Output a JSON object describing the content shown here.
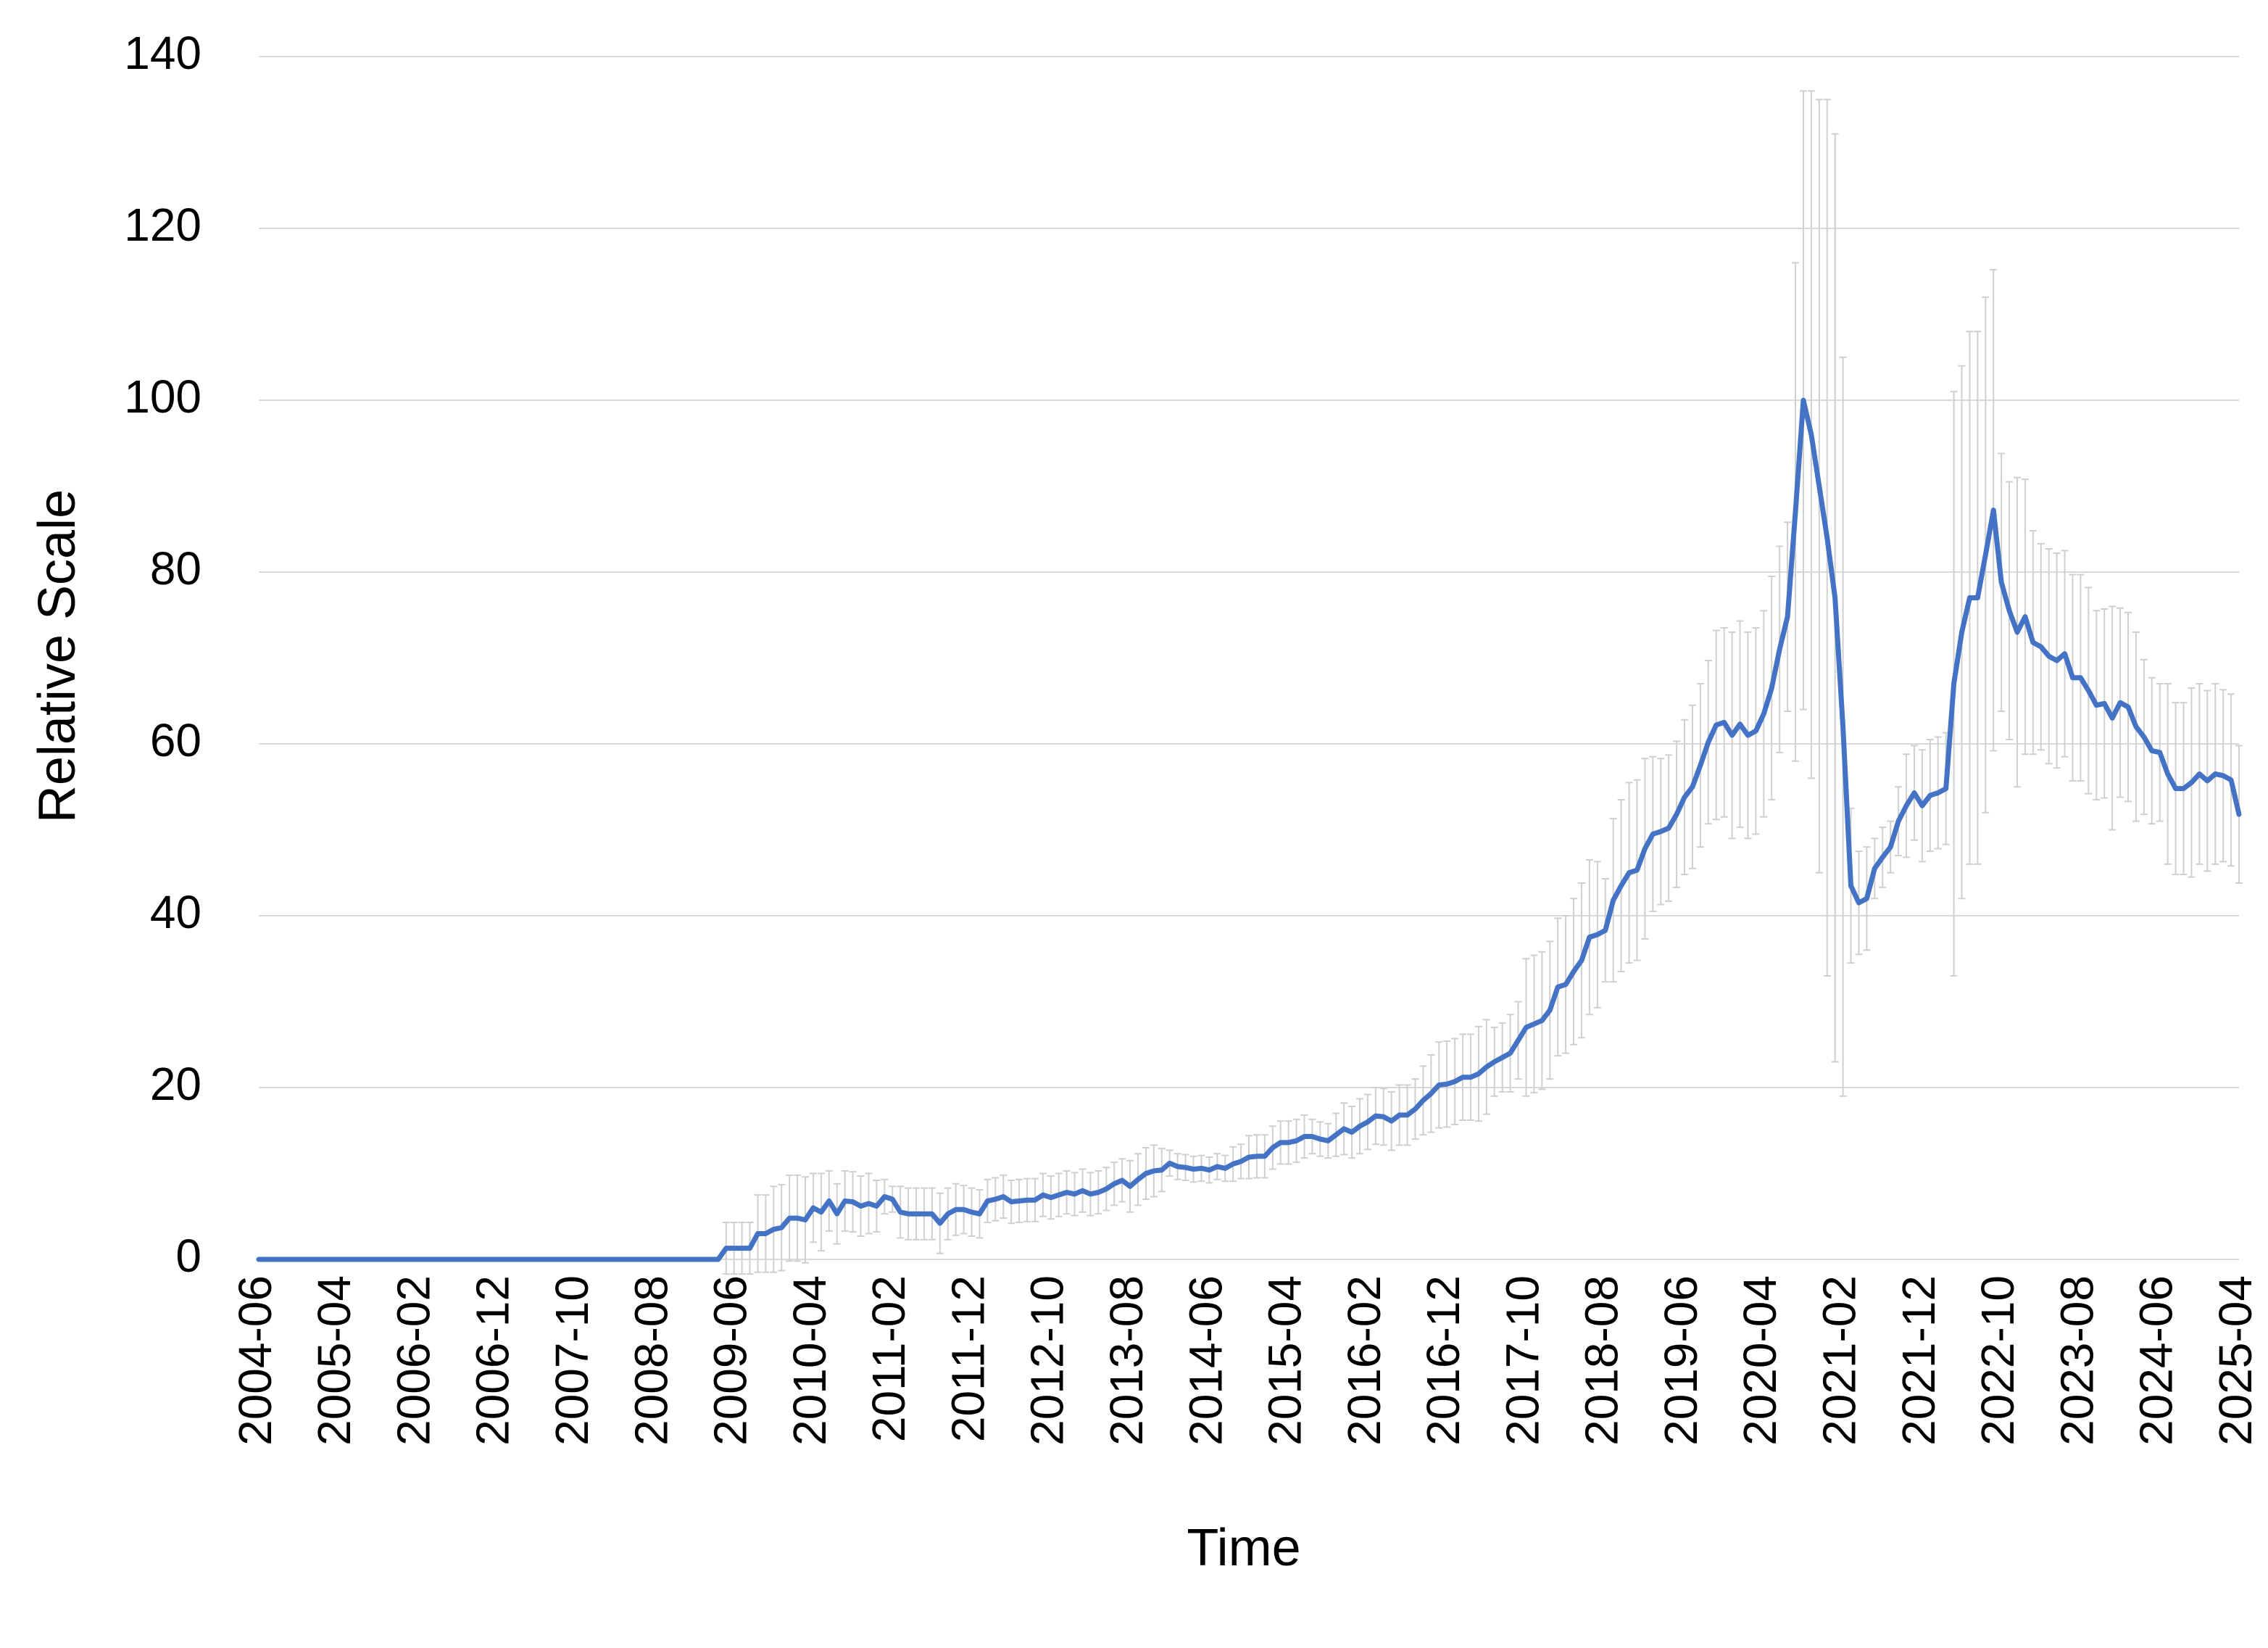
{
  "chart_data": {
    "type": "line",
    "x_label": "Time",
    "y_label": "Relative Scale",
    "categories": [
      "2004-06",
      null,
      null,
      null,
      null,
      null,
      null,
      null,
      null,
      null,
      "2005-04",
      null,
      null,
      null,
      null,
      null,
      null,
      null,
      null,
      null,
      "2006-02",
      null,
      null,
      null,
      null,
      null,
      null,
      null,
      null,
      null,
      "2006-12",
      null,
      null,
      null,
      null,
      null,
      null,
      null,
      null,
      null,
      "2007-10",
      null,
      null,
      null,
      null,
      null,
      null,
      null,
      null,
      null,
      "2008-08",
      null,
      null,
      null,
      null,
      null,
      null,
      null,
      null,
      null,
      "2009-06",
      null,
      null,
      null,
      null,
      null,
      null,
      null,
      null,
      null,
      "2010-04",
      null,
      null,
      null,
      null,
      null,
      null,
      null,
      null,
      null,
      "2011-02",
      null,
      null,
      null,
      null,
      null,
      null,
      null,
      null,
      null,
      "2011-12",
      null,
      null,
      null,
      null,
      null,
      null,
      null,
      null,
      null,
      "2012-10",
      null,
      null,
      null,
      null,
      null,
      null,
      null,
      null,
      null,
      "2013-08",
      null,
      null,
      null,
      null,
      null,
      null,
      null,
      null,
      null,
      "2014-06",
      null,
      null,
      null,
      null,
      null,
      null,
      null,
      null,
      null,
      "2015-04",
      null,
      null,
      null,
      null,
      null,
      null,
      null,
      null,
      null,
      "2016-02",
      null,
      null,
      null,
      null,
      null,
      null,
      null,
      null,
      null,
      "2016-12",
      null,
      null,
      null,
      null,
      null,
      null,
      null,
      null,
      null,
      "2017-10",
      null,
      null,
      null,
      null,
      null,
      null,
      null,
      null,
      null,
      "2018-08",
      null,
      null,
      null,
      null,
      null,
      null,
      null,
      null,
      null,
      "2019-06",
      null,
      null,
      null,
      null,
      null,
      null,
      null,
      null,
      null,
      "2020-04",
      null,
      null,
      null,
      null,
      null,
      null,
      null,
      null,
      null,
      "2021-02",
      null,
      null,
      null,
      null,
      null,
      null,
      null,
      null,
      null,
      "2021-12",
      null,
      null,
      null,
      null,
      null,
      null,
      null,
      null,
      null,
      "2022-10",
      null,
      null,
      null,
      null,
      null,
      null,
      null,
      null,
      null,
      "2023-08",
      null,
      null,
      null,
      null,
      null,
      null,
      null,
      null,
      null,
      "2024-06",
      null,
      null,
      null,
      null,
      null,
      null,
      null,
      null,
      null,
      "2025-04"
    ],
    "series": [
      {
        "color": "#4472c4",
        "error_color": "#cfcfcf",
        "values": [
          0,
          0,
          0,
          0,
          0,
          0,
          0,
          0,
          0,
          0,
          0,
          0,
          0,
          0,
          0,
          0,
          0,
          0,
          0,
          0,
          0,
          0,
          0,
          0,
          0,
          0,
          0,
          0,
          0,
          0,
          0,
          0,
          0,
          0,
          0,
          0,
          0,
          0,
          0,
          0,
          0,
          0,
          0,
          0,
          0,
          0,
          0,
          0,
          0,
          0,
          0,
          0,
          0,
          0,
          0,
          0,
          0,
          0,
          0,
          1.3,
          1.3,
          1.3,
          1.3,
          3,
          3,
          3.5,
          3.7,
          4.8,
          4.8,
          4.6,
          6,
          5.5,
          6.8,
          5.3,
          6.8,
          6.7,
          6.2,
          6.5,
          6.2,
          7.3,
          7,
          5.5,
          5.3,
          5.3,
          5.3,
          5.3,
          4.2,
          5.3,
          5.8,
          5.8,
          5.5,
          5.3,
          6.8,
          7,
          7.3,
          6.7,
          6.8,
          6.9,
          6.9,
          7.5,
          7.2,
          7.5,
          7.8,
          7.6,
          8,
          7.6,
          7.8,
          8.2,
          8.8,
          9.2,
          8.5,
          9.3,
          10,
          10.3,
          10.4,
          11.2,
          10.8,
          10.7,
          10.5,
          10.6,
          10.4,
          10.8,
          10.6,
          11.1,
          11.4,
          11.9,
          12,
          12,
          13,
          13.6,
          13.6,
          13.8,
          14.3,
          14.3,
          14,
          13.8,
          14.5,
          15.2,
          14.8,
          15.5,
          16,
          16.7,
          16.6,
          16.1,
          16.8,
          16.8,
          17.5,
          18.5,
          19.3,
          20.3,
          20.4,
          20.7,
          21.2,
          21.2,
          21.6,
          22.4,
          23,
          23.5,
          24,
          25.5,
          27,
          27.4,
          27.8,
          29,
          31.7,
          32,
          33.5,
          34.8,
          37.5,
          37.8,
          38.3,
          41.8,
          43.5,
          45,
          45.3,
          47.8,
          49.5,
          49.8,
          50.2,
          51.8,
          53.8,
          55,
          57.5,
          60.2,
          62.2,
          62.5,
          61,
          62.3,
          61,
          61.5,
          63.5,
          66.5,
          71,
          74.8,
          87,
          100,
          96,
          90,
          84,
          77,
          62,
          43.5,
          41.5,
          42,
          45.5,
          46.8,
          48,
          51,
          52.8,
          54.3,
          52.8,
          54,
          54.3,
          54.8,
          67,
          73,
          77,
          77,
          82,
          87.2,
          78.8,
          75.5,
          73,
          74.8,
          71.8,
          71.3,
          70.2,
          69.7,
          70.5,
          67.7,
          67.7,
          66.2,
          64.5,
          64.7,
          63,
          64.8,
          64.3,
          62,
          60.8,
          59.2,
          59,
          56.5,
          54.8,
          54.8,
          55.5,
          56.5,
          55.7,
          56.5,
          56.3,
          55.8,
          51.8
        ],
        "errors": [
          null,
          null,
          null,
          null,
          null,
          null,
          null,
          null,
          null,
          null,
          null,
          null,
          null,
          null,
          null,
          null,
          null,
          null,
          null,
          null,
          null,
          null,
          null,
          null,
          null,
          null,
          null,
          null,
          null,
          null,
          null,
          null,
          null,
          null,
          null,
          null,
          null,
          null,
          null,
          null,
          null,
          null,
          null,
          null,
          null,
          null,
          null,
          null,
          null,
          null,
          null,
          null,
          null,
          null,
          null,
          null,
          null,
          null,
          null,
          3,
          3,
          3,
          3,
          4.5,
          4.5,
          5,
          5,
          5,
          5,
          5,
          4,
          4.5,
          3.5,
          3.5,
          3.5,
          3.5,
          3.5,
          3.5,
          3,
          2,
          1.5,
          3,
          3,
          3,
          3,
          3,
          3.5,
          3,
          3,
          2.8,
          2.8,
          2.8,
          2.5,
          2.5,
          2.5,
          2.5,
          2.5,
          2.5,
          2.5,
          2.5,
          2.5,
          2.5,
          2.5,
          2.5,
          2.5,
          2.5,
          2.5,
          2.5,
          2.5,
          2.5,
          3,
          3,
          3,
          3,
          2.5,
          1.5,
          1.5,
          1.5,
          1.5,
          1.5,
          1.5,
          1.5,
          1.5,
          2,
          2,
          2.5,
          2.5,
          2.5,
          2.5,
          2.5,
          2.5,
          2.5,
          2.5,
          2,
          2,
          2,
          2.5,
          3,
          3,
          3.2,
          3.2,
          3.3,
          3.3,
          3.4,
          3.5,
          3.5,
          3.5,
          4,
          4.5,
          5,
          5,
          5,
          5,
          5,
          5.5,
          5.5,
          4,
          4,
          4.5,
          4.5,
          8,
          8,
          8,
          8,
          8,
          8,
          8.5,
          9,
          9,
          8.5,
          6,
          9.5,
          10,
          10.5,
          10.5,
          10.5,
          9,
          8.5,
          8.5,
          8.5,
          9,
          9.5,
          9.5,
          9.5,
          11,
          11,
          12,
          12,
          12,
          12,
          12,
          13,
          12,
          11,
          29,
          36,
          40,
          45,
          51,
          54,
          43,
          9,
          6,
          6,
          3.5,
          3.5,
          3,
          4,
          6,
          5.5,
          6.5,
          6.5,
          6.5,
          6.5,
          34,
          31,
          31,
          31,
          30,
          28,
          15,
          15,
          18,
          16,
          13,
          12,
          12.5,
          12.5,
          12,
          12,
          12,
          12,
          11,
          11,
          13,
          11,
          11,
          11,
          9,
          8.5,
          8,
          10.5,
          10,
          10,
          11,
          10.5,
          10.5,
          10.5,
          10,
          10,
          8
        ]
      }
    ],
    "ylim": [
      0,
      140
    ],
    "yticks": [
      0,
      20,
      40,
      60,
      80,
      100,
      120,
      140
    ],
    "grid": true
  }
}
